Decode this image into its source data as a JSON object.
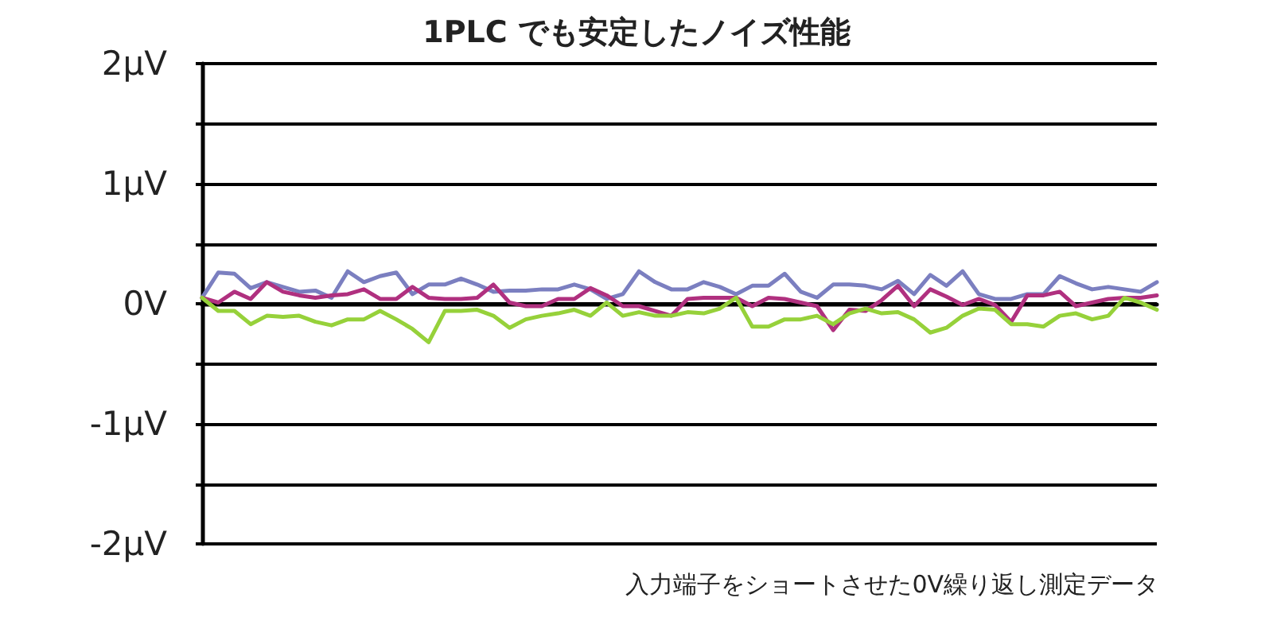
{
  "chart_data": {
    "type": "line",
    "title": "1PLC でも安定したノイズ性能",
    "annotations": [
      "入力端子をショートさせた0V繰り返し測定データ"
    ],
    "categories": [
      null,
      null,
      null,
      null,
      null,
      null,
      null,
      null,
      null,
      null,
      null,
      null,
      null,
      null,
      null,
      null,
      null,
      null,
      null,
      null,
      null,
      null,
      null,
      null,
      null,
      null,
      null,
      null,
      null,
      null,
      null,
      null,
      null,
      null,
      null,
      null,
      null,
      null,
      null,
      null,
      null,
      null,
      null,
      null,
      null,
      null,
      null,
      null,
      null,
      null,
      null,
      null,
      null,
      null,
      null,
      null,
      null,
      null,
      null,
      null
    ],
    "series": [
      {
        "color": "#7b7fc0",
        "values": [
          0.05,
          0.26,
          0.25,
          0.13,
          0.18,
          0.14,
          0.1,
          0.11,
          0.05,
          0.27,
          0.18,
          0.23,
          0.26,
          0.08,
          0.16,
          0.16,
          0.21,
          0.16,
          0.1,
          0.11,
          0.11,
          0.12,
          0.12,
          0.16,
          0.12,
          0.04,
          0.08,
          0.27,
          0.18,
          0.12,
          0.12,
          0.18,
          0.14,
          0.08,
          0.15,
          0.15,
          0.25,
          0.1,
          0.05,
          0.16,
          0.16,
          0.15,
          0.12,
          0.19,
          0.08,
          0.24,
          0.15,
          0.27,
          0.08,
          0.04,
          0.04,
          0.08,
          0.08,
          0.23,
          0.17,
          0.12,
          0.14,
          0.12,
          0.1,
          0.18
        ]
      },
      {
        "color": "#b0307f",
        "values": [
          0.05,
          0.01,
          0.1,
          0.04,
          0.18,
          0.1,
          0.07,
          0.05,
          0.07,
          0.08,
          0.12,
          0.04,
          0.04,
          0.14,
          0.05,
          0.04,
          0.04,
          0.05,
          0.16,
          0.01,
          -0.02,
          -0.02,
          0.04,
          0.04,
          0.13,
          0.07,
          -0.02,
          -0.02,
          -0.06,
          -0.1,
          0.04,
          0.05,
          0.05,
          0.05,
          -0.02,
          0.05,
          0.04,
          0.01,
          -0.02,
          -0.22,
          -0.05,
          -0.06,
          0.03,
          0.15,
          -0.02,
          0.12,
          0.06,
          -0.01,
          0.04,
          -0.01,
          -0.15,
          0.07,
          0.07,
          0.1,
          -0.02,
          0.01,
          0.04,
          0.05,
          0.05,
          0.07
        ]
      },
      {
        "color": "#96d13a",
        "values": [
          0.05,
          -0.06,
          -0.06,
          -0.17,
          -0.1,
          -0.11,
          -0.1,
          -0.15,
          -0.18,
          -0.13,
          -0.13,
          -0.06,
          -0.13,
          -0.21,
          -0.32,
          -0.06,
          -0.06,
          -0.05,
          -0.1,
          -0.2,
          -0.13,
          -0.1,
          -0.08,
          -0.05,
          -0.1,
          0.01,
          -0.1,
          -0.07,
          -0.1,
          -0.1,
          -0.07,
          -0.08,
          -0.04,
          0.05,
          -0.19,
          -0.19,
          -0.13,
          -0.13,
          -0.1,
          -0.17,
          -0.08,
          -0.04,
          -0.08,
          -0.07,
          -0.13,
          -0.24,
          -0.2,
          -0.1,
          -0.04,
          -0.05,
          -0.17,
          -0.17,
          -0.19,
          -0.1,
          -0.08,
          -0.13,
          -0.1,
          0.05,
          0.01,
          -0.05
        ]
      }
    ],
    "ylim": [
      -2,
      2
    ],
    "yticks": [
      {
        "value": -2,
        "label": "-2μV"
      },
      {
        "value": -1.5,
        "label": null
      },
      {
        "value": -1,
        "label": "-1μV"
      },
      {
        "value": -0.5,
        "label": null
      },
      {
        "value": 0,
        "label": "0V"
      },
      {
        "value": 0.5,
        "label": null
      },
      {
        "value": 1,
        "label": "1μV"
      },
      {
        "value": 1.5,
        "label": null
      },
      {
        "value": 2,
        "label": "2μV"
      }
    ],
    "grid": "y",
    "tick_labels": "y",
    "marker": "none",
    "line_style": "solid"
  }
}
